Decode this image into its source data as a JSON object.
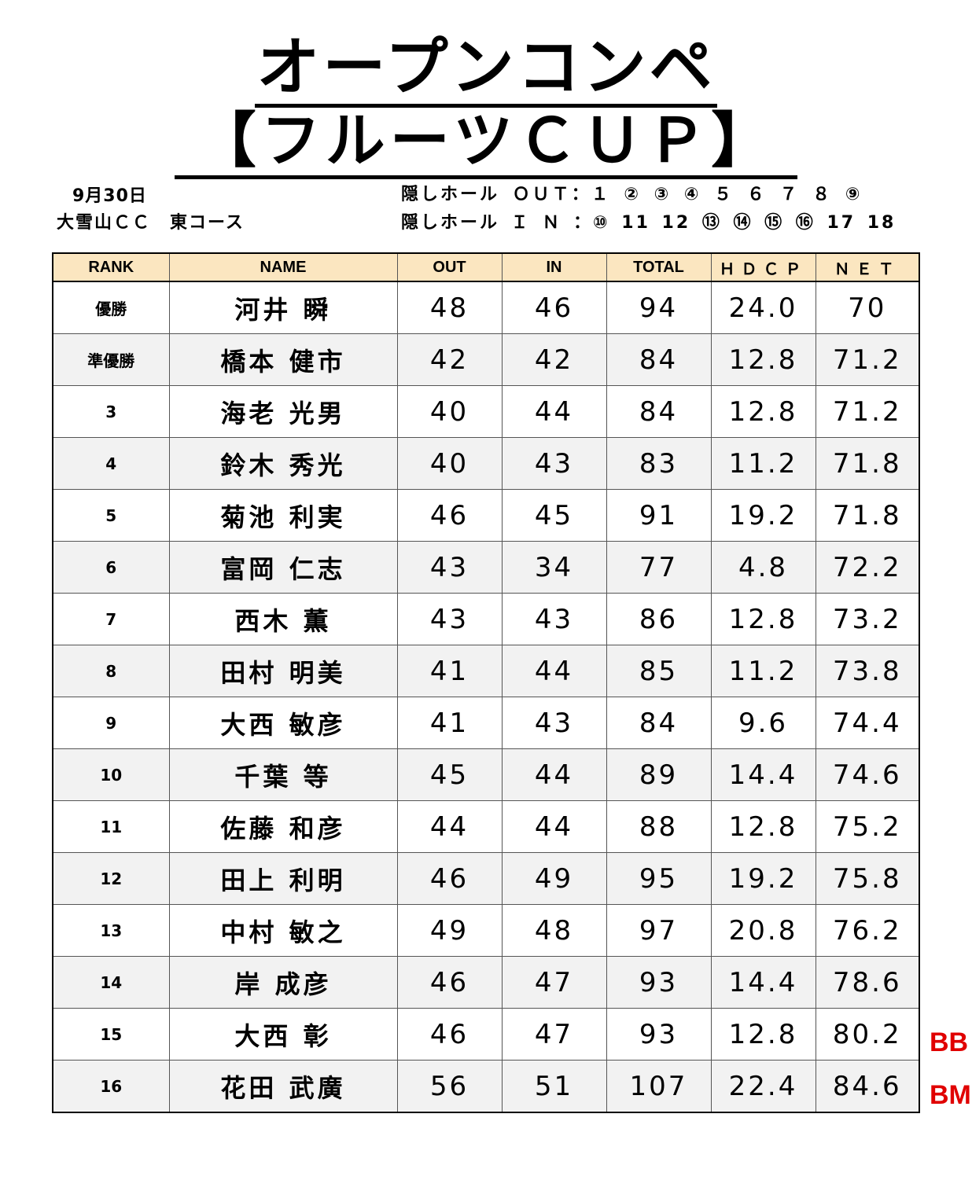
{
  "title_line1": "オープンコンペ",
  "title_line2": "【フルーツＣＵＰ】",
  "date": "9月30日",
  "course": "大雪山ＣＣ　東コース",
  "hidden_holes_out": "隠しホール ＯＵＴ：１ ② ③ ④ ５ ６ ７ ８ ⑨",
  "hidden_holes_in": "隠しホール Ｉ Ｎ ：⑩ 11 12 ⑬ ⑭ ⑮ ⑯ 17 18",
  "columns": [
    "RANK",
    "NAME",
    "OUT",
    "IN",
    "TOTAL",
    "ＨＤＣＰ",
    "ＮＥＴ"
  ],
  "rows": [
    {
      "rank": "優勝",
      "name": "河井 瞬",
      "out": "48",
      "in": "46",
      "total": "94",
      "hdcp": "24.0",
      "net": "70"
    },
    {
      "rank": "準優勝",
      "name": "橋本 健市",
      "out": "42",
      "in": "42",
      "total": "84",
      "hdcp": "12.8",
      "net": "71.2"
    },
    {
      "rank": "3",
      "name": "海老 光男",
      "out": "40",
      "in": "44",
      "total": "84",
      "hdcp": "12.8",
      "net": "71.2"
    },
    {
      "rank": "4",
      "name": "鈴木 秀光",
      "out": "40",
      "in": "43",
      "total": "83",
      "hdcp": "11.2",
      "net": "71.8"
    },
    {
      "rank": "5",
      "name": "菊池 利実",
      "out": "46",
      "in": "45",
      "total": "91",
      "hdcp": "19.2",
      "net": "71.8"
    },
    {
      "rank": "6",
      "name": "富岡 仁志",
      "out": "43",
      "in": "34",
      "total": "77",
      "hdcp": "4.8",
      "net": "72.2"
    },
    {
      "rank": "7",
      "name": "西木 薫",
      "out": "43",
      "in": "43",
      "total": "86",
      "hdcp": "12.8",
      "net": "73.2"
    },
    {
      "rank": "8",
      "name": "田村 明美",
      "out": "41",
      "in": "44",
      "total": "85",
      "hdcp": "11.2",
      "net": "73.8"
    },
    {
      "rank": "9",
      "name": "大西 敏彦",
      "out": "41",
      "in": "43",
      "total": "84",
      "hdcp": "9.6",
      "net": "74.4"
    },
    {
      "rank": "10",
      "name": "千葉 等",
      "out": "45",
      "in": "44",
      "total": "89",
      "hdcp": "14.4",
      "net": "74.6"
    },
    {
      "rank": "11",
      "name": "佐藤 和彦",
      "out": "44",
      "in": "44",
      "total": "88",
      "hdcp": "12.8",
      "net": "75.2"
    },
    {
      "rank": "12",
      "name": "田上 利明",
      "out": "46",
      "in": "49",
      "total": "95",
      "hdcp": "19.2",
      "net": "75.8"
    },
    {
      "rank": "13",
      "name": "中村 敏之",
      "out": "49",
      "in": "48",
      "total": "97",
      "hdcp": "20.8",
      "net": "76.2"
    },
    {
      "rank": "14",
      "name": "岸 成彦",
      "out": "46",
      "in": "47",
      "total": "93",
      "hdcp": "14.4",
      "net": "78.6"
    },
    {
      "rank": "15",
      "name": "大西 彰",
      "out": "46",
      "in": "47",
      "total": "93",
      "hdcp": "12.8",
      "net": "80.2"
    },
    {
      "rank": "16",
      "name": "花田 武廣",
      "out": "56",
      "in": "51",
      "total": "107",
      "hdcp": "22.4",
      "net": "84.6"
    }
  ],
  "flags": [
    {
      "row": 15,
      "label": "BB"
    },
    {
      "row": 16,
      "label": "BM"
    }
  ],
  "colors": {
    "header_bg": "#fbe6c0",
    "alt_row_bg": "#f2f2f2",
    "flag": "#e00000"
  }
}
